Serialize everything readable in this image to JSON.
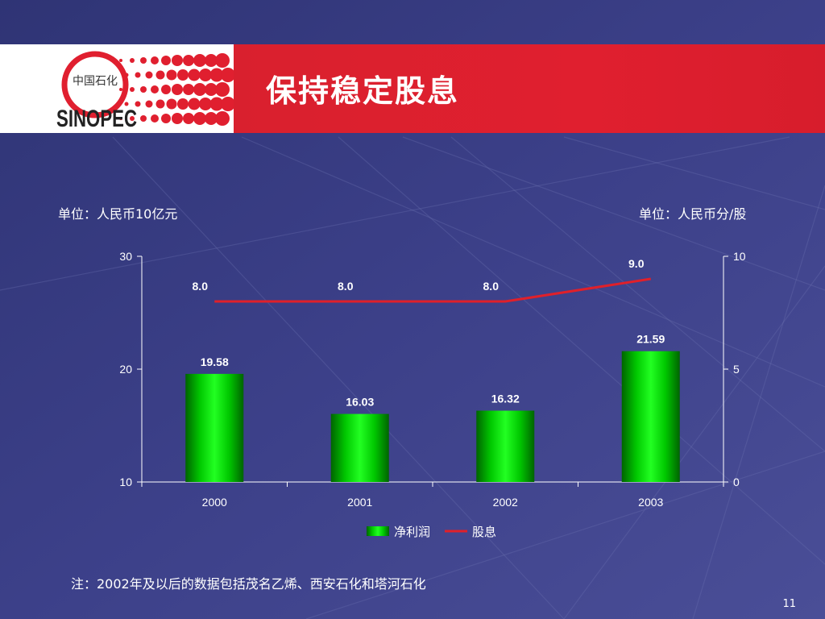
{
  "header": {
    "title": "保持稳定股息",
    "logo": {
      "icon": "sinopec-logo-icon",
      "brand_text": "SINOPEC",
      "chinese_text": "中国石化"
    }
  },
  "units": {
    "left": "单位：人民币10亿元",
    "right": "单位：人民币分/股"
  },
  "note": "注：2002年及以后的数据包括茂名乙烯、西安石化和塔河石化",
  "page_number": "11",
  "colors": {
    "background": "#3b3f86",
    "header_red": "#dd1f2e",
    "bar_green": "#00e000",
    "line_red": "#e0202a"
  },
  "chart_data": {
    "type": "bar",
    "categories": [
      "2000",
      "2001",
      "2002",
      "2003"
    ],
    "series": [
      {
        "name": "净利润",
        "type": "bar",
        "axis": "left",
        "values": [
          19.58,
          16.03,
          16.32,
          21.59
        ],
        "labels": [
          "19.58",
          "16.03",
          "16.32",
          "21.59"
        ]
      },
      {
        "name": "股息",
        "type": "line",
        "axis": "right",
        "values": [
          8.0,
          8.0,
          8.0,
          9.0
        ],
        "labels": [
          "8.0",
          "8.0",
          "8.0",
          "9.0"
        ]
      }
    ],
    "ylim_left": [
      10,
      30
    ],
    "yticks_left": [
      "10",
      "20",
      "30"
    ],
    "ylim_right": [
      0,
      10
    ],
    "yticks_right": [
      "0",
      "5",
      "10"
    ],
    "grid": false,
    "legend": "bottom-center"
  }
}
